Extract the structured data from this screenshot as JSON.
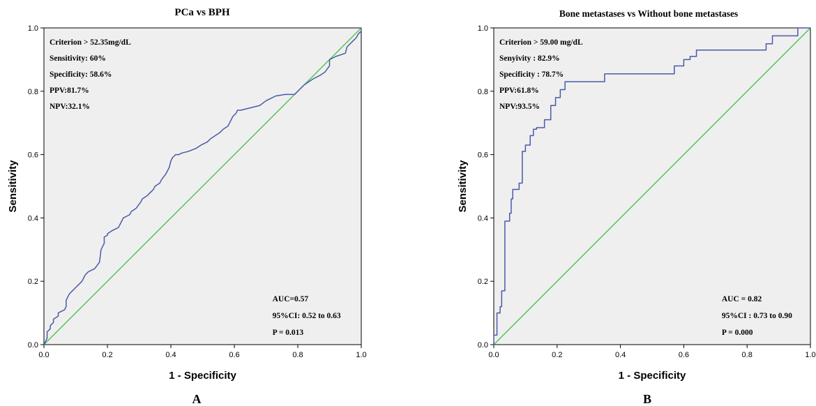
{
  "chart_data": [
    {
      "type": "line",
      "panel_label": "A",
      "title": "PCa vs BPH",
      "xlabel": "1 - Specificity",
      "ylabel": "Sensitivity",
      "xlim": [
        0,
        1
      ],
      "ylim": [
        0,
        1
      ],
      "x_ticks": [
        "0.0",
        "0.2",
        "0.4",
        "0.6",
        "0.8",
        "1.0"
      ],
      "y_ticks": [
        "0.0",
        "0.2",
        "0.4",
        "0.6",
        "0.8",
        "1.0"
      ],
      "grid": false,
      "annotations_top": [
        "Criterion > 52.35mg/dL",
        "Sensitivity: 60%",
        "Specificity: 58.6%",
        "PPV:81.7%",
        "NPV:32.1%"
      ],
      "annotations_bottom": [
        "AUC=0.57",
        "95%CI: 0.52 to 0.63",
        "P = 0.013"
      ],
      "colors": {
        "roc": "#4a5aa8",
        "reference": "#4cc44c",
        "background": "#efefef"
      },
      "series": [
        {
          "x": [
            0.0,
            0.005,
            0.01,
            0.01,
            0.02,
            0.02,
            0.03,
            0.03,
            0.045,
            0.045,
            0.065,
            0.07,
            0.07,
            0.08,
            0.09,
            0.1,
            0.12,
            0.13,
            0.14,
            0.15,
            0.16,
            0.175,
            0.18,
            0.19,
            0.19,
            0.2,
            0.2,
            0.215,
            0.235,
            0.24,
            0.25,
            0.27,
            0.275,
            0.29,
            0.305,
            0.31,
            0.325,
            0.335,
            0.345,
            0.35,
            0.365,
            0.37,
            0.385,
            0.395,
            0.4,
            0.405,
            0.415,
            0.425,
            0.435,
            0.455,
            0.48,
            0.495,
            0.515,
            0.525,
            0.54,
            0.555,
            0.565,
            0.58,
            0.585,
            0.595,
            0.605,
            0.61,
            0.62,
            0.64,
            0.66,
            0.68,
            0.7,
            0.71,
            0.73,
            0.76,
            0.79,
            0.8,
            0.81,
            0.82,
            0.835,
            0.85,
            0.87,
            0.885,
            0.9,
            0.9,
            0.92,
            0.95,
            0.955,
            0.965,
            0.975,
            0.985,
            0.99,
            1.0,
            1.0
          ],
          "y": [
            0.0,
            0.01,
            0.02,
            0.04,
            0.05,
            0.06,
            0.07,
            0.08,
            0.09,
            0.1,
            0.11,
            0.12,
            0.14,
            0.16,
            0.17,
            0.18,
            0.2,
            0.22,
            0.23,
            0.235,
            0.24,
            0.26,
            0.3,
            0.32,
            0.34,
            0.345,
            0.35,
            0.36,
            0.37,
            0.38,
            0.4,
            0.41,
            0.42,
            0.43,
            0.45,
            0.46,
            0.47,
            0.48,
            0.49,
            0.5,
            0.51,
            0.52,
            0.54,
            0.56,
            0.58,
            0.59,
            0.6,
            0.6,
            0.605,
            0.61,
            0.62,
            0.63,
            0.64,
            0.65,
            0.66,
            0.67,
            0.68,
            0.69,
            0.7,
            0.72,
            0.73,
            0.74,
            0.74,
            0.745,
            0.75,
            0.755,
            0.77,
            0.775,
            0.785,
            0.79,
            0.79,
            0.8,
            0.81,
            0.82,
            0.83,
            0.84,
            0.85,
            0.86,
            0.88,
            0.9,
            0.91,
            0.92,
            0.94,
            0.95,
            0.96,
            0.97,
            0.98,
            0.99,
            1.0
          ]
        },
        {
          "x": [
            0,
            1
          ],
          "y": [
            0,
            1
          ]
        }
      ]
    },
    {
      "type": "line",
      "panel_label": "B",
      "title": "Bone metastases vs  Without bone metastases",
      "xlabel": "1 - Specificity",
      "ylabel": "Sensitivity",
      "xlim": [
        0,
        1
      ],
      "ylim": [
        0,
        1
      ],
      "x_ticks": [
        "0.0",
        "0.2",
        "0.4",
        "0.6",
        "0.8",
        "1.0"
      ],
      "y_ticks": [
        "0.0",
        "0.2",
        "0.4",
        "0.6",
        "0.8",
        "1.0"
      ],
      "grid": false,
      "annotations_top": [
        "Criterion > 59.00 mg/dL",
        "Senyivity : 82.9%",
        "Specificity : 78.7%",
        "PPV:61.8%",
        "NPV:93.5%"
      ],
      "annotations_bottom": [
        "AUC = 0.82",
        "95%CI : 0.73 to 0.90",
        "P = 0.000"
      ],
      "colors": {
        "roc": "#4a5aa8",
        "reference": "#4cc44c",
        "background": "#efefef"
      },
      "series": [
        {
          "x": [
            0.0,
            0.0,
            0.01,
            0.01,
            0.02,
            0.02,
            0.025,
            0.025,
            0.035,
            0.035,
            0.05,
            0.05,
            0.055,
            0.055,
            0.06,
            0.06,
            0.08,
            0.08,
            0.09,
            0.09,
            0.1,
            0.1,
            0.115,
            0.115,
            0.125,
            0.125,
            0.135,
            0.135,
            0.16,
            0.16,
            0.18,
            0.18,
            0.195,
            0.195,
            0.21,
            0.21,
            0.225,
            0.225,
            0.35,
            0.35,
            0.57,
            0.57,
            0.6,
            0.6,
            0.62,
            0.62,
            0.64,
            0.64,
            0.86,
            0.86,
            0.88,
            0.88,
            0.96,
            0.96,
            1.0
          ],
          "y": [
            0.0,
            0.03,
            0.03,
            0.1,
            0.1,
            0.12,
            0.12,
            0.17,
            0.17,
            0.39,
            0.39,
            0.415,
            0.415,
            0.46,
            0.46,
            0.49,
            0.49,
            0.51,
            0.51,
            0.61,
            0.61,
            0.63,
            0.63,
            0.66,
            0.66,
            0.68,
            0.68,
            0.685,
            0.685,
            0.71,
            0.71,
            0.755,
            0.755,
            0.78,
            0.78,
            0.805,
            0.805,
            0.83,
            0.83,
            0.855,
            0.855,
            0.88,
            0.88,
            0.9,
            0.9,
            0.91,
            0.91,
            0.93,
            0.93,
            0.95,
            0.95,
            0.975,
            0.975,
            1.0,
            1.0
          ]
        },
        {
          "x": [
            0,
            1
          ],
          "y": [
            0,
            1
          ]
        }
      ]
    }
  ]
}
